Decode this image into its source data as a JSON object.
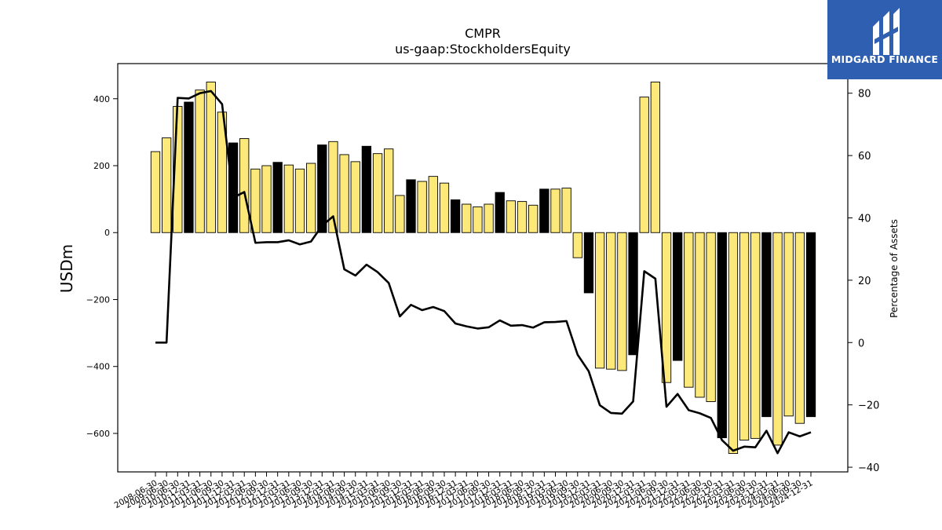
{
  "brand": {
    "name": "MIDGARD FINANCE",
    "bg_color": "#2f5fb0"
  },
  "chart_data": {
    "type": "bar",
    "title": "CMPR",
    "subtitle": "us-gaap:StockholdersEquity",
    "ylabel": "USDm",
    "y2label": "Percentage of Assets",
    "ylim": [
      -715,
      505
    ],
    "y2lim": [
      -41.5,
      89.5
    ],
    "yticks": [
      -600,
      -400,
      -200,
      0,
      200,
      400
    ],
    "y2ticks": [
      -40,
      -20,
      0,
      20,
      40,
      60,
      80
    ],
    "colors": {
      "bar_light": "#fce97a",
      "bar_dark": "#000000",
      "bar_edge": "#000000",
      "line": "#000000"
    },
    "x": [
      "2008-06-30",
      "2009-06-30",
      "2010-06-30",
      "2010-12-31",
      "2011-03-31",
      "2011-06-30",
      "2011-09-30",
      "2011-12-31",
      "2012-03-31",
      "2012-06-30",
      "2012-09-30",
      "2012-12-31",
      "2013-03-31",
      "2013-06-30",
      "2013-09-30",
      "2013-12-31",
      "2014-03-31",
      "2014-06-30",
      "2014-09-30",
      "2014-12-31",
      "2015-03-31",
      "2015-06-30",
      "2015-09-30",
      "2015-12-31",
      "2016-03-31",
      "2016-06-30",
      "2016-09-30",
      "2016-12-31",
      "2017-03-31",
      "2017-06-30",
      "2017-09-30",
      "2017-12-31",
      "2018-03-31",
      "2018-06-30",
      "2018-09-30",
      "2018-12-31",
      "2019-03-31",
      "2019-06-30",
      "2019-09-30",
      "2019-12-31",
      "2020-03-31",
      "2020-06-30",
      "2020-09-30",
      "2020-12-31",
      "2021-03-31",
      "2021-06-30",
      "2021-09-30",
      "2021-12-31",
      "2022-03-31",
      "2022-06-30",
      "2022-09-30",
      "2022-12-31",
      "2023-03-31",
      "2023-06-30",
      "2023-09-30",
      "2023-12-31",
      "2024-03-31",
      "2024-06-30",
      "2024-09-30",
      "2024-12-31"
    ],
    "x_labels_visible": [
      "2008-06-30",
      "2009-06-30",
      "2010-06-30",
      "2010-12-31",
      "2011-03-31",
      "2011-06-30",
      "2011-09-30",
      "2011-12-31",
      "2012-03-31",
      "2012-06-30",
      "2012-09-30",
      "2012-12-31",
      "2013-03-31",
      "2013-06-30",
      "2013-09-30",
      "2013-12-31",
      "2014-03-31",
      "2014-06-30",
      "2014-09-30",
      "2014-12-31",
      "2015-03-31",
      "2015-06-30",
      "2015-09-30",
      "2015-12-31",
      "2016-03-31",
      "2016-06-30",
      "2016-09-30",
      "2016-12-31",
      "2017-03-31",
      "2017-06-30",
      "2017-09-30",
      "2017-12-31",
      "2018-03-31",
      "2018-06-30",
      "2018-09-30",
      "2018-12-31",
      "2019-03-31",
      "2019-06-30",
      "2019-09-30",
      "2019-12-31",
      "2020-03-31",
      "2020-06-30",
      "2020-09-30",
      "2020-12-31",
      "2021-03-31",
      "2021-06-30",
      "2021-09-30",
      "2021-12-31",
      "2022-03-31",
      "2022-06-30",
      "2022-09-30",
      "2022-12-31",
      "2023-03-31",
      "2023-06-30",
      "2023-09-30",
      "2023-12-31",
      "2024-03-31",
      "2024-06-30",
      "2024-09-30",
      "2024-12-31"
    ],
    "series": [
      {
        "type": "bar",
        "values": [
          242,
          283,
          377,
          390,
          426,
          450,
          360,
          268,
          281,
          190,
          200,
          210,
          202,
          190,
          207,
          262,
          272,
          233,
          212,
          258,
          236,
          250,
          111,
          158,
          153,
          168,
          148,
          98,
          85,
          77,
          85,
          120,
          95,
          93,
          82,
          130,
          130,
          133,
          -75,
          -180,
          -405,
          -408,
          -412,
          -365,
          405,
          450,
          -448,
          -382,
          -462,
          -492,
          -505,
          -613,
          -660,
          -620,
          -615,
          -550,
          -635,
          -548,
          -570,
          -550
        ],
        "dark": [
          false,
          false,
          false,
          true,
          false,
          false,
          false,
          true,
          false,
          false,
          false,
          true,
          false,
          false,
          false,
          true,
          false,
          false,
          false,
          true,
          false,
          false,
          false,
          true,
          false,
          false,
          false,
          true,
          false,
          false,
          false,
          true,
          false,
          false,
          false,
          true,
          false,
          false,
          false,
          true,
          false,
          false,
          false,
          true,
          false,
          false,
          false,
          true,
          false,
          false,
          false,
          true,
          false,
          false,
          false,
          true,
          false,
          false,
          false,
          true
        ]
      },
      {
        "type": "line",
        "axis": "right",
        "values": [
          0,
          0,
          78.5,
          78.3,
          80,
          80.7,
          76.5,
          46.5,
          48.3,
          32,
          32.2,
          32.2,
          32.8,
          31.5,
          32.4,
          37.5,
          40.5,
          23.5,
          21.5,
          25,
          22.6,
          19.1,
          8.4,
          12.1,
          10.4,
          11.4,
          10.1,
          6.1,
          5.2,
          4.5,
          4.9,
          7.1,
          5.4,
          5.6,
          4.8,
          6.5,
          6.6,
          6.9,
          -3.9,
          -9.2,
          -20.1,
          -22.6,
          -22.8,
          -18.9,
          22.9,
          20.5,
          -20.6,
          -16.5,
          -21.7,
          -22.7,
          -24.2,
          -31.3,
          -34.7,
          -33.4,
          -33.6,
          -28.3,
          -35.5,
          -28.8,
          -30.1,
          -28.8
        ]
      }
    ]
  }
}
